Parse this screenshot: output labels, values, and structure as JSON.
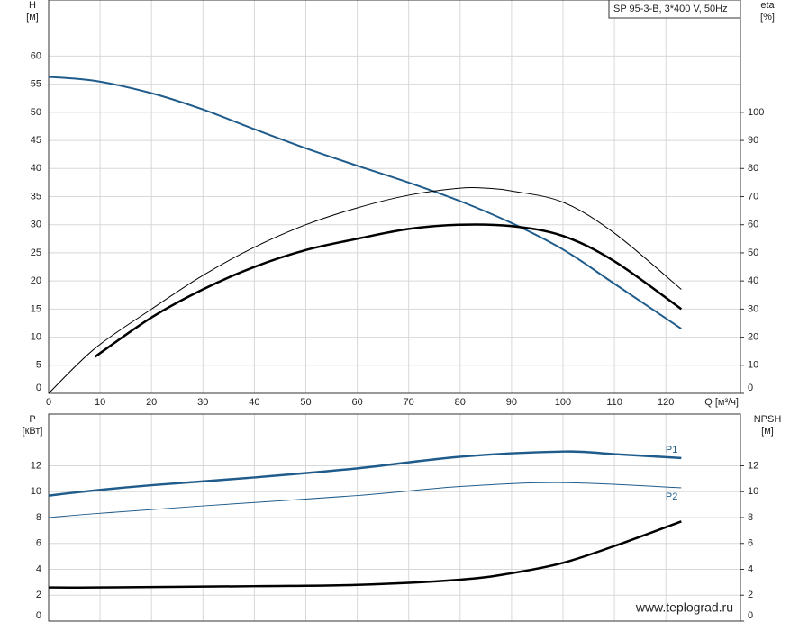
{
  "chart_data": [
    {
      "type": "line",
      "title": "SP 95-3-B, 3*400 V, 50Hz",
      "y_label": "H",
      "y_unit": "[м]",
      "y2_label": "eta",
      "y2_unit": "[%]",
      "x_label": "Q [м³/ч]",
      "xlim": [
        0,
        134.5
      ],
      "xticks": [
        0,
        10,
        20,
        30,
        40,
        50,
        60,
        70,
        80,
        90,
        100,
        110,
        120
      ],
      "ylim": [
        0,
        70
      ],
      "yticks": [
        0,
        5,
        10,
        15,
        20,
        25,
        30,
        35,
        40,
        45,
        50,
        55,
        60
      ],
      "y2lim": [
        0,
        140
      ],
      "y2ticks": [
        0,
        10,
        20,
        30,
        40,
        50,
        60,
        70,
        80,
        90,
        100
      ],
      "grid": true,
      "series": [
        {
          "color": "#1f5c8b",
          "linewidth": 2,
          "x": [
            0,
            9,
            20,
            30,
            40,
            50,
            60,
            70,
            80,
            90,
            100,
            110,
            123
          ],
          "values": [
            56.3,
            55.6,
            53.4,
            50.5,
            47,
            43.6,
            40.5,
            37.5,
            34.2,
            30.3,
            25.6,
            19.5,
            11.5
          ]
        },
        {
          "color": "#000000",
          "linewidth": 1,
          "axis": "y2",
          "x": [
            0,
            9,
            20,
            30,
            40,
            50,
            60,
            70,
            80,
            85,
            90,
            100,
            110,
            123
          ],
          "values": [
            0,
            16,
            30,
            42,
            52,
            60,
            66,
            70.5,
            73,
            73,
            72,
            68,
            57,
            37
          ]
        },
        {
          "color": "#000000",
          "linewidth": 2.5,
          "axis": "y2",
          "x": [
            9,
            20,
            30,
            40,
            50,
            60,
            70,
            80,
            90,
            100,
            110,
            123
          ],
          "values": [
            13,
            27,
            37,
            45,
            51,
            55,
            58.5,
            60,
            59.5,
            56,
            47,
            30
          ]
        }
      ]
    },
    {
      "type": "line",
      "y_label": "P",
      "y_unit": "[кВт]",
      "y2_label": "NPSH",
      "y2_unit": "[м]",
      "annotation": "www.teplograd.ru",
      "xlim": [
        0,
        134.5
      ],
      "xticks": [
        0,
        10,
        20,
        30,
        40,
        50,
        60,
        70,
        80,
        90,
        100,
        110,
        120
      ],
      "ylim": [
        0,
        16
      ],
      "yticks": [
        0,
        2,
        4,
        6,
        8,
        10,
        12
      ],
      "y2lim": [
        0,
        16
      ],
      "y2ticks": [
        0,
        2,
        4,
        6,
        8,
        10,
        12
      ],
      "grid": true,
      "series": [
        {
          "name": "P1",
          "color": "#1f5c8b",
          "linewidth": 2.5,
          "x": [
            0,
            9,
            20,
            40,
            60,
            80,
            100,
            110,
            123
          ],
          "values": [
            9.7,
            10.1,
            10.5,
            11.1,
            11.8,
            12.7,
            13.1,
            12.9,
            12.6
          ]
        },
        {
          "name": "P2",
          "color": "#1f5c8b",
          "linewidth": 1,
          "x": [
            0,
            9,
            30,
            60,
            80,
            100,
            123
          ],
          "values": [
            8,
            8.3,
            8.9,
            9.7,
            10.4,
            10.7,
            10.3
          ]
        },
        {
          "color": "#000000",
          "linewidth": 2.5,
          "axis": "y2",
          "x": [
            0,
            9,
            40,
            60,
            80,
            90,
            100,
            110,
            123
          ],
          "values": [
            2.6,
            2.6,
            2.7,
            2.8,
            3.2,
            3.7,
            4.5,
            5.8,
            7.7
          ]
        }
      ]
    }
  ]
}
